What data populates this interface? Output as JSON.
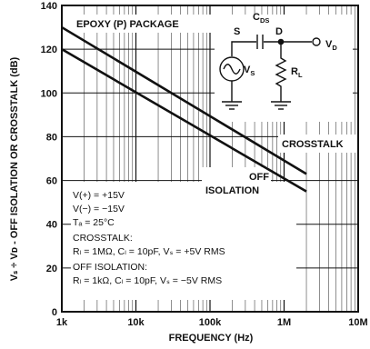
{
  "chart_data": {
    "type": "line",
    "xscale": "log",
    "xlabel": "FREQUENCY (Hz)",
    "ylabel": "Vₛ ÷ Vᴅ - OFF ISOLATION OR CROSSTALK (dB)",
    "ylabel_unit": "(dB)",
    "xlim": [
      1000,
      10000000
    ],
    "ylim": [
      0,
      140
    ],
    "x_ticks": [
      1000,
      10000,
      100000,
      1000000,
      10000000
    ],
    "x_tick_labels": [
      "1k",
      "10k",
      "100k",
      "1M",
      "10M"
    ],
    "y_ticks": [
      0,
      20,
      40,
      60,
      80,
      100,
      120,
      140
    ],
    "y_tick_labels": [
      "0",
      "20",
      "40",
      "60",
      "80",
      "100",
      "120",
      "140"
    ],
    "grid": true,
    "series": [
      {
        "name": "CROSSTALK",
        "x": [
          1000,
          2000000
        ],
        "y": [
          130,
          63
        ]
      },
      {
        "name": "OFF ISOLATION",
        "x": [
          1000,
          2000000
        ],
        "y": [
          120,
          55
        ]
      }
    ],
    "annotations": {
      "package": "EPOXY (P) PACKAGE",
      "crosstalk_label": "CROSSTALK",
      "off_label_1": "OFF",
      "off_label_2": "ISOLATION"
    },
    "conditions": [
      "V(+) = +15V",
      "V(−) = −15V",
      "Tₐ = 25°C",
      "CROSSTALK:",
      "Rₗ = 1MΩ, Cₗ = 10pF, Vₛ = +5V RMS",
      "OFF ISOLATION:",
      "Rₗ = 1kΩ, Cₗ = 10pF, Vₛ = −5V RMS"
    ],
    "circuit": {
      "s_label": "S",
      "d_label": "D",
      "cds_label": "C",
      "cds_sub": "DS",
      "vd_label": "V",
      "vd_sub": "D",
      "vs_label": "V",
      "vs_sub": "S",
      "rl_label": "R",
      "rl_sub": "L"
    }
  }
}
